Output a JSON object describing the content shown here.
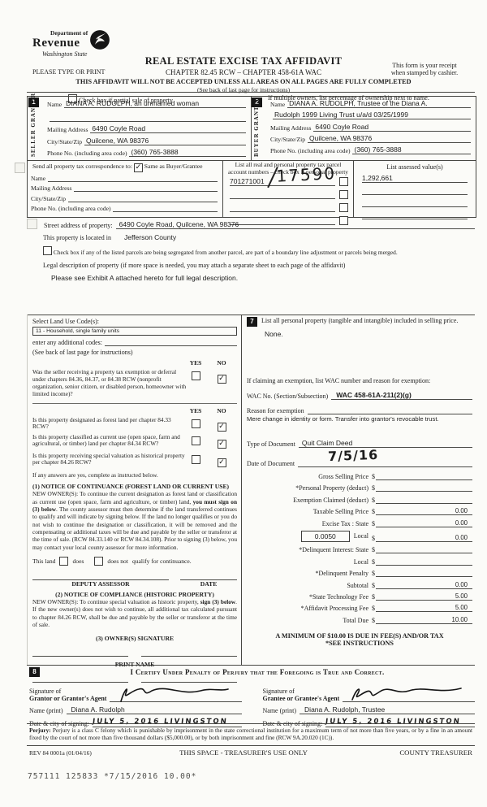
{
  "header": {
    "logo_line1": "Department of",
    "logo_line2": "Revenue",
    "logo_line3": "Washington State",
    "please_type": "PLEASE TYPE OR PRINT",
    "title": "REAL ESTATE EXCISE TAX AFFIDAVIT",
    "subtitle": "CHAPTER 82.45 RCW – CHAPTER 458-61A WAC",
    "receipt_line1": "This form is your receipt",
    "receipt_line2": "when stamped by cashier.",
    "warning": "THIS AFFIDAVIT WILL NOT BE ACCEPTED UNLESS ALL AREAS ON ALL PAGES ARE FULLY COMPLETED",
    "see_back": "(See back of last page for instructions)",
    "partial_sale_check": "",
    "partial_sale_label": "Check box if partial sale of property",
    "multiple_owners_label": "If multiple owners, list percentage of ownership next to name."
  },
  "seller": {
    "box_number": "1",
    "side_label_1": "SELLER",
    "side_label_2": "GRANTOR",
    "name_label": "Name",
    "name_value": "DIANA A. RUDOLPH, an unmarried woman",
    "mailing_label": "Mailing Address",
    "mailing_value": "6490 Coyle Road",
    "city_label": "City/State/Zip",
    "city_value": "Quilcene, WA 98376",
    "phone_label": "Phone No. (including area code)",
    "phone_value": "(360) 765-3888"
  },
  "buyer": {
    "box_number": "2",
    "side_label_1": "BUYER",
    "side_label_2": "GRANTEE",
    "name_label": "Name",
    "name_value_line1": "DIANA A. RUDOLPH, Trustee of the Diana A.",
    "name_value_line2": "Rudolph 1999 Living Trust u/a/d 03/25/1999",
    "mailing_label": "Mailing Address",
    "mailing_value": "6490 Coyle Road",
    "city_label": "City/State/Zip",
    "city_value": "Quilcene, WA 98376",
    "phone_label": "Phone No. (including area code)",
    "phone_value": "(360) 765-3888"
  },
  "correspondence": {
    "send_label": "Send all property tax correspondence to:",
    "same_check": "✓",
    "same_label": "Same as Buyer/Grantee",
    "name_label": "Name",
    "mailing_label": "Mailing Address",
    "city_label": "City/State/Zip",
    "phone_label": "Phone No. (including area code)"
  },
  "parcels": {
    "header": "List all real and personal property tax parcel account numbers – check box if personal property",
    "parcel_number": "701271001",
    "handwritten_number": "17590",
    "assessed_header": "List assessed value(s)",
    "assessed_value": "1,292,661"
  },
  "property": {
    "street_label": "Street address of property:",
    "street_value": "6490 Coyle Road, Quilcene, WA 98376",
    "located_label": "This property is located in",
    "located_value": "Jefferson County",
    "segregated_check": "",
    "segregated_label": "Check box if any of the listed parcels are being segregated from another parcel, are part of a boundary line adjustment or parcels being merged.",
    "legal_label": "Legal description of property (if more space is needed, you may attach a separate sheet to each page of the affidavit)",
    "legal_value": "Please see Exhibit A attached hereto for full legal description."
  },
  "land_use": {
    "select_label": "Select Land Use Code(s):",
    "code_value": "11 - Household, single family units",
    "additional_label": "enter any additional codes:",
    "see_back": "(See back of last page for instructions)",
    "yes": "YES",
    "no": "NO",
    "questions": [
      {
        "text": "Was the seller receiving a property tax exemption or deferral under chapters 84.36, 84.37, or 84.38 RCW (nonprofit organization, senior citizen, or disabled person, homeowner with limited income)?",
        "yes": "",
        "no": "✓"
      },
      {
        "text": "Is this property designated as forest land per chapter 84.33 RCW?",
        "yes": "",
        "no": "✓"
      },
      {
        "text": "Is this property classified as current use (open space, farm and agricultural, or timber) land per chapter 84.34 RCW?",
        "yes": "",
        "no": "✓"
      },
      {
        "text": "Is this property receiving special valuation as historical property per chapter 84.26 RCW?",
        "yes": "",
        "no": "✓"
      }
    ],
    "if_yes": "If any answers are yes, complete as instructed below.",
    "notice1_title": "(1) NOTICE OF CONTINUANCE  (FOREST LAND OR CURRENT USE)",
    "notice1_pre": "NEW OWNER(S): To continue the current designation as forest land or classification as current use (open space, farm and agriculture, or timber) land, ",
    "notice1_bold": "you must sign on (3) below",
    "notice1_post": ". The county assessor must then determine if the land transferred continues to qualify and will indicate by signing below. If the land no longer qualifies or you do not wish to continue the designation or classification, it will be removed and the compensating or additional taxes will be due and payable by the seller or transferor at the time of sale. (RCW 84.33.140 or RCW 84.34.108). Prior to signing (3) below, you may contact your local county assessor for more information.",
    "this_land": "This land",
    "does_check": "",
    "does_label": "does",
    "does_not_check": "",
    "does_not_label": "does not",
    "qualify_label": "qualify for continuance.",
    "deputy_assessor": "DEPUTY ASSESSOR",
    "date": "DATE",
    "notice2_title": "(2) NOTICE OF COMPLIANCE (HISTORIC PROPERTY)",
    "notice2_pre": "NEW OWNER(S): To continue special valuation as historic property, ",
    "notice2_bold": "sign (3) below",
    "notice2_post": ". If the new owner(s) does not wish to continue, all additional tax calculated pursuant to chapter 84.26 RCW, shall be due and payable by the seller or transferor at the time of sale.",
    "owners_signature": "(3)  OWNER(S) SIGNATURE",
    "print_name": "PRINT NAME"
  },
  "personal_property": {
    "box_number": "7",
    "label": "List all  personal property (tangible and intangible) included in selling price.",
    "value": "None."
  },
  "exemption": {
    "claim_label": "If claiming an exemption, list WAC number and reason for exemption:",
    "wac_label": "WAC No. (Section/Subsection)",
    "wac_value": "WAC 458-61A-211(2)(g)",
    "reason_label": "Reason for exemption",
    "reason_value": "Mere change in identity or form.  Transfer into grantor's revocable trust."
  },
  "document": {
    "type_label": "Type of Document",
    "type_value": "Quit Claim Deed",
    "date_label": "Date of Document",
    "date_value": "7/5/16"
  },
  "fees": {
    "rows": [
      {
        "label": "Gross Selling Price",
        "value": ""
      },
      {
        "label": "*Personal Property (deduct)",
        "value": ""
      },
      {
        "label": "Exemption Claimed (deduct)",
        "value": ""
      },
      {
        "label": "Taxable Selling Price",
        "value": "0.00"
      },
      {
        "label": "Excise Tax : State",
        "value": "0.00"
      },
      {
        "label": "Local",
        "value": "0.00",
        "rate_box": "0.0050"
      },
      {
        "label": "*Delinquent Interest: State",
        "value": ""
      },
      {
        "label": "Local",
        "value": ""
      },
      {
        "label": "*Delinquent Penalty",
        "value": ""
      },
      {
        "label": "Subtotal",
        "value": "0.00"
      },
      {
        "label": "*State Technology Fee",
        "value": "5.00"
      },
      {
        "label": "*Affidavit Processing Fee",
        "value": "5.00"
      },
      {
        "label": "Total Due",
        "value": "10.00"
      }
    ],
    "minimum_line1": "A MINIMUM OF $10.00 IS DUE IN FEE(S) AND/OR TAX",
    "minimum_line2": "*SEE INSTRUCTIONS"
  },
  "certify": {
    "box_number": "8",
    "statement": "I Certify Under Penalty of Perjury that the Foregoing is True and Correct.",
    "grantor_sig_label1": "Signature of",
    "grantor_sig_label2": "Grantor or Grantor's Agent",
    "grantor_name_label": "Name (print)",
    "grantor_name_value": "Diana A. Rudolph",
    "grantor_date_label": "Date & city of signing:",
    "grantor_date_value": "JULY 5, 2016   LIVINGSTON",
    "grantee_sig_label1": "Signature of",
    "grantee_sig_label2": "Grantee or Grantee's Agent",
    "grantee_name_label": "Name (print)",
    "grantee_name_value": "Diana A. Rudolph, Trustee",
    "grantee_date_label": "Date & city of signing:",
    "grantee_date_value": "JULY 5, 2016   LIVINGSTON"
  },
  "perjury": {
    "label": "Perjury:",
    "text": " Perjury is a class C felony which is punishable by imprisonment in the state correctional institution for a maximum term of not more than five years, or by a fine in an amount fixed by the court of not more than five thousand dollars ($5,000.00), or by both imprisonment and fine (RCW 9A.20.020 (1C))."
  },
  "footer": {
    "rev": "REV 84 0001a (01/04/16)",
    "treasurer_space": "THIS SPACE - TREASURER'S USE ONLY",
    "county_treasurer": "COUNTY TREASURER",
    "stamp": "757111 125833 *7/15/2016 10.00*"
  }
}
